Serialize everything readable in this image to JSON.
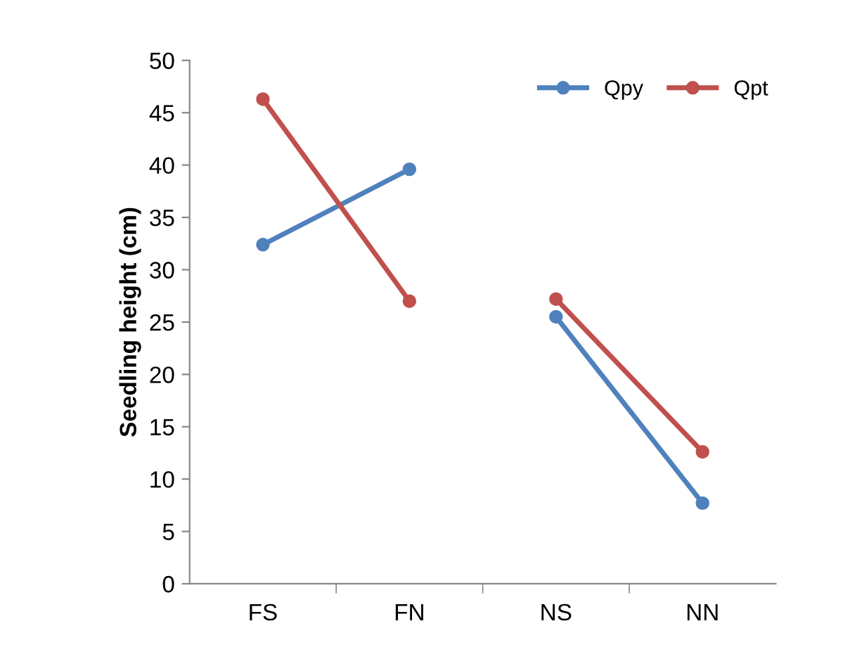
{
  "chart_data": {
    "type": "line",
    "ylabel": "Seedling height (cm)",
    "categories": [
      "FS",
      "FN",
      "NS",
      "NN"
    ],
    "series": [
      {
        "name": "Qpy",
        "color": "#4f81bd",
        "values": [
          32.4,
          39.6,
          null,
          null
        ]
      },
      {
        "name": "Qpt",
        "color": "#c0504d",
        "values": [
          46.3,
          27.0,
          null,
          null
        ]
      },
      {
        "color": "#4f81bd",
        "values": [
          null,
          null,
          25.5,
          7.7
        ]
      },
      {
        "color": "#c0504d",
        "values": [
          null,
          null,
          27.2,
          12.6
        ]
      }
    ],
    "ylim": [
      0,
      50
    ],
    "yticks": [
      0,
      5,
      10,
      15,
      20,
      25,
      30,
      35,
      40,
      45,
      50
    ],
    "grid": false,
    "legend": "top right",
    "marker": "circle",
    "line_style": "solid"
  }
}
